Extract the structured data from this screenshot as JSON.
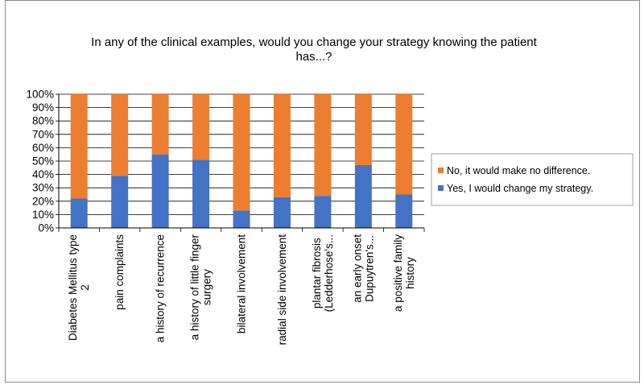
{
  "chart_data": {
    "type": "bar",
    "stacked": true,
    "percent": true,
    "title": "In any of the clinical examples, would you change your strategy knowing the patient has...?",
    "categories": [
      [
        "Diabetes Mellitus type",
        "2"
      ],
      [
        "pain complaints"
      ],
      [
        "a history of recurrence"
      ],
      [
        "a history of little finger",
        "surgery"
      ],
      [
        "bilateral involvement"
      ],
      [
        "radial side involvement"
      ],
      [
        "plantar fibrosis",
        "(Ledderhose's..."
      ],
      [
        "an early onset",
        "Dupuytren's..."
      ],
      [
        "a positive family",
        "history"
      ]
    ],
    "series": [
      {
        "name": "Yes, I would change my strategy.",
        "color": "#4472C4",
        "values": [
          22,
          39,
          55,
          51,
          13,
          23,
          24,
          47,
          25
        ]
      },
      {
        "name": "No, it would make no difference.",
        "color": "#ED7D31",
        "values": [
          78,
          61,
          45,
          49,
          87,
          77,
          76,
          53,
          75
        ]
      }
    ],
    "yticks": [
      "0%",
      "10%",
      "20%",
      "30%",
      "40%",
      "50%",
      "60%",
      "70%",
      "80%",
      "90%",
      "100%"
    ],
    "ylim": [
      0,
      100
    ],
    "grid": true,
    "legend": {
      "position": "right",
      "items": [
        {
          "label": "No, it would make no difference.",
          "color": "#ED7D31"
        },
        {
          "label": "Yes, I would change my strategy.",
          "color": "#4472C4"
        }
      ]
    }
  }
}
